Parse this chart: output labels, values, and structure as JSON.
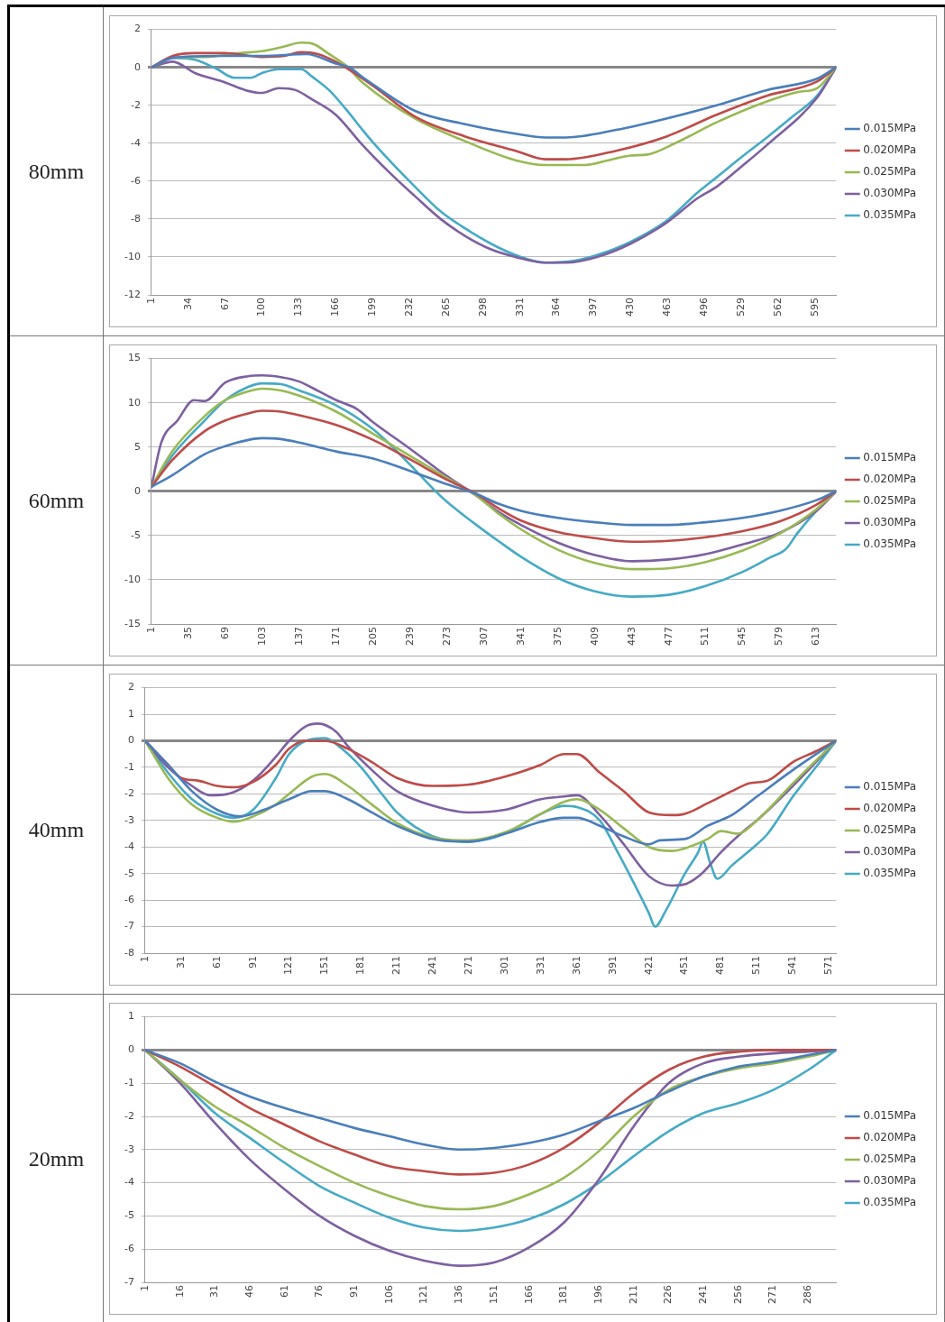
{
  "chart_data": [
    {
      "type": "line",
      "title": "80mm",
      "xlim": [
        1,
        614
      ],
      "xticks": [
        1,
        34,
        67,
        100,
        133,
        166,
        199,
        232,
        265,
        298,
        331,
        364,
        397,
        430,
        463,
        496,
        529,
        562,
        595
      ],
      "ylim": [
        -12,
        2
      ],
      "yticks": [
        -12,
        -10,
        -8,
        -6,
        -4,
        -2,
        0,
        2
      ],
      "grid": "y",
      "legend": "right",
      "marker": "none",
      "line_style": "solid",
      "series": [
        {
          "name": "0.015MPa",
          "color": "#4a7ebb",
          "x": [
            1,
            20,
            60,
            100,
            140,
            166,
            178,
            192,
            237,
            282,
            327,
            354,
            372,
            417,
            462,
            507,
            552,
            597,
            614
          ],
          "values": [
            0,
            0.5,
            0.6,
            0.6,
            0.7,
            0.2,
            0,
            -0.6,
            -2.3,
            -3.0,
            -3.5,
            -3.7,
            -3.7,
            -3.3,
            -2.7,
            -2.0,
            -1.2,
            -0.6,
            0
          ]
        },
        {
          "name": "0.020MPa",
          "color": "#be4b48",
          "x": [
            1,
            20,
            40,
            67,
            100,
            120,
            135,
            150,
            166,
            180,
            200,
            237,
            282,
            327,
            354,
            372,
            417,
            462,
            507,
            552,
            597,
            614
          ],
          "values": [
            0,
            0.6,
            0.75,
            0.75,
            0.55,
            0.6,
            0.8,
            0.7,
            0.3,
            -0.2,
            -1.0,
            -2.6,
            -3.65,
            -4.4,
            -4.85,
            -4.85,
            -4.4,
            -3.65,
            -2.5,
            -1.5,
            -0.75,
            0
          ]
        },
        {
          "name": "0.025MPa",
          "color": "#98b954",
          "x": [
            1,
            20,
            50,
            80,
            100,
            120,
            135,
            145,
            160,
            175,
            190,
            237,
            282,
            327,
            354,
            390,
            410,
            430,
            445,
            470,
            507,
            552,
            580,
            597,
            614
          ],
          "values": [
            0,
            0.5,
            0.55,
            0.75,
            0.85,
            1.1,
            1.3,
            1.25,
            0.7,
            0.1,
            -0.8,
            -2.7,
            -3.9,
            -4.9,
            -5.15,
            -5.15,
            -4.9,
            -4.65,
            -4.6,
            -4.0,
            -2.9,
            -1.8,
            -1.3,
            -1.1,
            0
          ]
        },
        {
          "name": "0.030MPa",
          "color": "#7d60a0",
          "x": [
            1,
            20,
            40,
            67,
            85,
            100,
            115,
            130,
            145,
            166,
            190,
            215,
            237,
            260,
            282,
            305,
            327,
            354,
            372,
            400,
            430,
            462,
            490,
            507,
            530,
            552,
            597,
            614
          ],
          "values": [
            0,
            0.3,
            -0.3,
            -0.8,
            -1.2,
            -1.35,
            -1.1,
            -1.2,
            -1.7,
            -2.5,
            -4.1,
            -5.6,
            -6.8,
            -8.0,
            -8.9,
            -9.6,
            -10.0,
            -10.3,
            -10.3,
            -10.0,
            -9.3,
            -8.2,
            -6.9,
            -6.3,
            -5.2,
            -4.1,
            -1.6,
            0
          ]
        },
        {
          "name": "0.035MPa",
          "color": "#46aac5",
          "x": [
            1,
            20,
            40,
            60,
            75,
            90,
            100,
            115,
            135,
            145,
            160,
            175,
            190,
            200,
            237,
            260,
            282,
            305,
            327,
            354,
            380,
            400,
            430,
            462,
            490,
            507,
            530,
            552,
            575,
            597,
            614
          ],
          "values": [
            0,
            0.5,
            0.4,
            -0.1,
            -0.55,
            -0.55,
            -0.3,
            -0.1,
            -0.1,
            -0.5,
            -1.2,
            -2.2,
            -3.3,
            -4.0,
            -6.3,
            -7.6,
            -8.5,
            -9.3,
            -9.9,
            -10.3,
            -10.2,
            -9.9,
            -9.2,
            -8.1,
            -6.6,
            -5.8,
            -4.7,
            -3.7,
            -2.6,
            -1.5,
            0
          ]
        }
      ]
    },
    {
      "type": "line",
      "title": "60mm",
      "xlim": [
        1,
        631
      ],
      "xticks": [
        1,
        35,
        69,
        103,
        137,
        171,
        205,
        239,
        273,
        307,
        341,
        375,
        409,
        443,
        477,
        511,
        545,
        579,
        613
      ],
      "ylim": [
        -15,
        15
      ],
      "yticks": [
        -15,
        -10,
        -5,
        0,
        5,
        10,
        15
      ],
      "grid": "y",
      "legend": "right",
      "marker": "none",
      "line_style": "solid",
      "x": [
        1,
        20,
        50,
        69,
        90,
        103,
        120,
        137,
        171,
        205,
        239,
        273,
        300,
        320,
        341,
        375,
        409,
        443,
        477,
        511,
        545,
        579,
        613,
        631
      ],
      "series": [
        {
          "name": "0.015MPa",
          "color": "#4a7ebb",
          "values": [
            0.5,
            1.8,
            4.2,
            5.1,
            5.8,
            6.0,
            5.9,
            5.5,
            4.5,
            3.7,
            2.3,
            0.8,
            -0.3,
            -1.4,
            -2.2,
            -3.0,
            -3.5,
            -3.8,
            -3.8,
            -3.5,
            -3.0,
            -2.2,
            -1.0,
            0
          ]
        },
        {
          "name": "0.020MPa",
          "color": "#be4b48",
          "values": [
            0.5,
            3.5,
            6.8,
            8.0,
            8.8,
            9.1,
            9.0,
            8.6,
            7.5,
            5.8,
            3.6,
            1.3,
            -0.3,
            -1.9,
            -3.3,
            -4.6,
            -5.3,
            -5.7,
            -5.6,
            -5.2,
            -4.5,
            -3.4,
            -1.5,
            0
          ]
        },
        {
          "name": "0.025MPa",
          "color": "#98b954",
          "values": [
            0.5,
            4.5,
            8.5,
            10.3,
            11.3,
            11.6,
            11.4,
            10.8,
            9.0,
            6.5,
            4.0,
            1.5,
            -0.5,
            -2.5,
            -4.3,
            -6.6,
            -8.1,
            -8.8,
            -8.7,
            -8.0,
            -6.7,
            -4.8,
            -2.0,
            0
          ]
        },
        {
          "name": "0.030MPa",
          "color": "#7d60a0",
          "x": [
            1,
            10,
            25,
            40,
            50,
            69,
            90,
            103,
            120,
            137,
            155,
            171,
            190,
            205,
            239,
            273,
            300,
            320,
            341,
            375,
            409,
            443,
            477,
            511,
            545,
            579,
            613,
            631
          ],
          "values": [
            0.5,
            5.5,
            8,
            10.3,
            10.2,
            12.3,
            13.0,
            13.1,
            12.9,
            12.4,
            11.3,
            10.3,
            9.3,
            7.8,
            4.8,
            1.7,
            -0.5,
            -2.3,
            -3.8,
            -5.8,
            -7.2,
            -7.9,
            -7.7,
            -7.1,
            -6.0,
            -4.7,
            -2.2,
            0
          ]
        },
        {
          "name": "0.035MPa",
          "color": "#46aac5",
          "x": [
            1,
            20,
            50,
            69,
            90,
            103,
            120,
            137,
            171,
            205,
            239,
            260,
            273,
            300,
            320,
            341,
            375,
            409,
            443,
            477,
            511,
            545,
            570,
            585,
            595,
            613,
            631
          ],
          "values": [
            0.5,
            4.0,
            8.0,
            10.3,
            11.8,
            12.2,
            12.1,
            11.4,
            9.7,
            7.0,
            3.0,
            0.3,
            -1.2,
            -3.8,
            -5.6,
            -7.4,
            -9.8,
            -11.3,
            -11.9,
            -11.7,
            -10.7,
            -9.1,
            -7.5,
            -6.5,
            -4.8,
            -2.2,
            0
          ]
        }
      ]
    },
    {
      "type": "line",
      "title": "40mm",
      "xlim": [
        1,
        577
      ],
      "xticks": [
        1,
        31,
        61,
        91,
        121,
        151,
        181,
        211,
        241,
        271,
        301,
        331,
        361,
        391,
        421,
        451,
        481,
        511,
        541,
        571
      ],
      "ylim": [
        -8,
        2
      ],
      "yticks": [
        -8,
        -7,
        -6,
        -5,
        -4,
        -3,
        -2,
        -1,
        0,
        1,
        2
      ],
      "grid": "y",
      "legend": "right",
      "marker": "none",
      "line_style": "solid",
      "series": [
        {
          "name": "0.015MPa",
          "color": "#4a7ebb",
          "x": [
            1,
            20,
            40,
            61,
            80,
            100,
            121,
            140,
            151,
            170,
            190,
            211,
            241,
            271,
            301,
            331,
            350,
            361,
            380,
            400,
            421,
            430,
            451,
            470,
            490,
            511,
            541,
            577
          ],
          "values": [
            0,
            -0.9,
            -1.9,
            -2.6,
            -2.85,
            -2.6,
            -2.2,
            -1.9,
            -1.9,
            -2.2,
            -2.7,
            -3.2,
            -3.7,
            -3.8,
            -3.5,
            -3.05,
            -2.9,
            -2.9,
            -3.2,
            -3.6,
            -3.9,
            -3.75,
            -3.7,
            -3.2,
            -2.8,
            -2.1,
            -1.1,
            0
          ]
        },
        {
          "name": "0.020MPa",
          "color": "#be4b48",
          "x": [
            1,
            20,
            31,
            45,
            61,
            75,
            91,
            110,
            121,
            135,
            151,
            170,
            190,
            211,
            241,
            271,
            301,
            331,
            350,
            361,
            380,
            400,
            421,
            440,
            451,
            470,
            490,
            505,
            520,
            541,
            560,
            577
          ],
          "values": [
            0,
            -0.9,
            -1.4,
            -1.5,
            -1.7,
            -1.75,
            -1.55,
            -0.9,
            -0.3,
            0,
            0,
            -0.3,
            -0.8,
            -1.4,
            -1.7,
            -1.65,
            -1.35,
            -0.9,
            -0.5,
            -0.5,
            -1.2,
            -1.9,
            -2.7,
            -2.8,
            -2.75,
            -2.35,
            -1.9,
            -1.6,
            -1.5,
            -0.8,
            -0.4,
            0
          ]
        },
        {
          "name": "0.025MPa",
          "color": "#98b954",
          "x": [
            1,
            20,
            40,
            61,
            75,
            91,
            110,
            121,
            140,
            151,
            170,
            190,
            211,
            241,
            271,
            301,
            331,
            350,
            361,
            380,
            400,
            421,
            440,
            451,
            470,
            481,
            495,
            511,
            541,
            577
          ],
          "values": [
            0,
            -1.4,
            -2.4,
            -2.9,
            -3.05,
            -2.85,
            -2.4,
            -2.0,
            -1.35,
            -1.25,
            -1.7,
            -2.4,
            -3.1,
            -3.65,
            -3.75,
            -3.45,
            -2.75,
            -2.3,
            -2.2,
            -2.6,
            -3.3,
            -4.0,
            -4.15,
            -4.05,
            -3.7,
            -3.4,
            -3.5,
            -3.0,
            -1.6,
            0
          ]
        },
        {
          "name": "0.030MPa",
          "color": "#7d60a0",
          "x": [
            1,
            20,
            40,
            55,
            70,
            91,
            110,
            121,
            135,
            145,
            160,
            170,
            190,
            211,
            241,
            271,
            301,
            331,
            350,
            361,
            380,
            400,
            421,
            440,
            451,
            465,
            481,
            500,
            511,
            541,
            577
          ],
          "values": [
            0,
            -1.0,
            -1.7,
            -2.05,
            -2.0,
            -1.5,
            -0.6,
            0,
            0.55,
            0.65,
            0.35,
            -0.2,
            -1.1,
            -1.9,
            -2.45,
            -2.7,
            -2.6,
            -2.2,
            -2.1,
            -2.05,
            -2.8,
            -3.9,
            -5.1,
            -5.45,
            -5.4,
            -5.0,
            -4.2,
            -3.4,
            -3.0,
            -1.7,
            0
          ]
        },
        {
          "name": "0.035MPa",
          "color": "#46aac5",
          "x": [
            1,
            20,
            40,
            61,
            75,
            91,
            110,
            121,
            135,
            151,
            165,
            181,
            200,
            211,
            241,
            271,
            301,
            331,
            350,
            361,
            380,
            395,
            410,
            421,
            426,
            435,
            451,
            462,
            466,
            472,
            478,
            490,
            511,
            520,
            541,
            560,
            577
          ],
          "values": [
            0,
            -1.2,
            -2.2,
            -2.75,
            -2.9,
            -2.6,
            -1.4,
            -0.5,
            0,
            0.1,
            -0.3,
            -1.0,
            -2.1,
            -2.7,
            -3.6,
            -3.8,
            -3.5,
            -2.75,
            -2.45,
            -2.5,
            -3.0,
            -4.2,
            -5.5,
            -6.5,
            -7.0,
            -6.4,
            -5.0,
            -4.2,
            -3.8,
            -4.6,
            -5.2,
            -4.7,
            -3.9,
            -3.5,
            -2.1,
            -1.0,
            0
          ]
        }
      ]
    },
    {
      "type": "line",
      "title": "20mm",
      "xlim": [
        1,
        298
      ],
      "xticks": [
        1,
        16,
        31,
        46,
        61,
        76,
        91,
        106,
        121,
        136,
        151,
        166,
        181,
        196,
        211,
        226,
        241,
        256,
        271,
        286
      ],
      "ylim": [
        -7,
        1
      ],
      "yticks": [
        -7,
        -6,
        -5,
        -4,
        -3,
        -2,
        -1,
        0,
        1
      ],
      "grid": "y",
      "legend": "right",
      "marker": "none",
      "line_style": "solid",
      "x": [
        1,
        16,
        31,
        46,
        61,
        76,
        91,
        106,
        121,
        136,
        151,
        166,
        181,
        196,
        211,
        226,
        241,
        256,
        271,
        286,
        298
      ],
      "series": [
        {
          "name": "0.015MPa",
          "color": "#4a7ebb",
          "values": [
            0,
            -0.4,
            -0.95,
            -1.4,
            -1.75,
            -2.05,
            -2.35,
            -2.6,
            -2.85,
            -3.0,
            -2.95,
            -2.8,
            -2.55,
            -2.15,
            -1.75,
            -1.25,
            -0.8,
            -0.5,
            -0.35,
            -0.15,
            0
          ]
        },
        {
          "name": "0.020MPa",
          "color": "#be4b48",
          "values": [
            0,
            -0.5,
            -1.1,
            -1.75,
            -2.25,
            -2.75,
            -3.15,
            -3.5,
            -3.65,
            -3.75,
            -3.7,
            -3.45,
            -2.95,
            -2.2,
            -1.3,
            -0.6,
            -0.2,
            -0.05,
            0,
            0,
            0
          ]
        },
        {
          "name": "0.025MPa",
          "color": "#98b954",
          "values": [
            0,
            -0.9,
            -1.7,
            -2.3,
            -2.95,
            -3.5,
            -4.0,
            -4.4,
            -4.7,
            -4.8,
            -4.7,
            -4.35,
            -3.85,
            -3.05,
            -2.0,
            -1.2,
            -0.8,
            -0.55,
            -0.4,
            -0.2,
            0
          ]
        },
        {
          "name": "0.030MPa",
          "color": "#7d60a0",
          "values": [
            0,
            -1.0,
            -2.2,
            -3.3,
            -4.2,
            -5.0,
            -5.6,
            -6.05,
            -6.35,
            -6.5,
            -6.4,
            -5.95,
            -5.2,
            -3.9,
            -2.3,
            -1.0,
            -0.4,
            -0.2,
            -0.1,
            -0.05,
            0
          ]
        },
        {
          "name": "0.035MPa",
          "color": "#46aac5",
          "values": [
            0,
            -0.9,
            -1.9,
            -2.65,
            -3.4,
            -4.1,
            -4.6,
            -5.05,
            -5.35,
            -5.45,
            -5.35,
            -5.1,
            -4.65,
            -4.0,
            -3.2,
            -2.45,
            -1.9,
            -1.6,
            -1.2,
            -0.6,
            0
          ]
        }
      ]
    }
  ]
}
